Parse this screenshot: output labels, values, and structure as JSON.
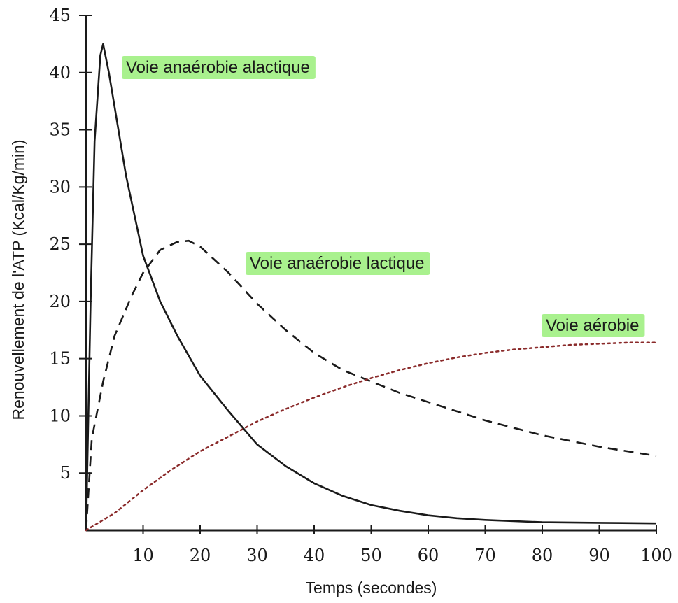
{
  "chart_data": {
    "type": "line",
    "xlabel": "Temps (secondes)",
    "ylabel": "Renouvellement de l'ATP (Kcal/Kg/min)",
    "xlim": [
      0,
      100
    ],
    "ylim": [
      0,
      45
    ],
    "xticks": [
      10,
      20,
      30,
      40,
      50,
      60,
      70,
      80,
      90,
      100
    ],
    "yticks": [
      5,
      10,
      15,
      20,
      25,
      30,
      35,
      40,
      45
    ],
    "grid": false,
    "highlight_color": "#9aef7a",
    "series": [
      {
        "name": "Voie anaérobie alactique",
        "style": "solid",
        "color": "#1a1a1a",
        "x": [
          0,
          0.8,
          1.5,
          2.5,
          3,
          4,
          5,
          7,
          10,
          13,
          16,
          20,
          25,
          30,
          35,
          40,
          45,
          50,
          55,
          60,
          65,
          70,
          80,
          90,
          100
        ],
        "y": [
          0,
          20,
          34,
          41.5,
          42.5,
          40,
          37,
          31,
          24,
          20,
          17,
          13.5,
          10.4,
          7.5,
          5.6,
          4.1,
          3,
          2.2,
          1.7,
          1.3,
          1.05,
          0.9,
          0.7,
          0.65,
          0.6
        ]
      },
      {
        "name": "Voie anaérobie lactique",
        "style": "dashed",
        "color": "#1a1a1a",
        "x": [
          0,
          1,
          3,
          5,
          8,
          10,
          13,
          16,
          18,
          20,
          25,
          30,
          35,
          40,
          45,
          50,
          55,
          60,
          70,
          80,
          90,
          100
        ],
        "y": [
          0,
          8,
          13,
          17,
          20.5,
          22.5,
          24.5,
          25.2,
          25.3,
          24.8,
          22.5,
          19.8,
          17.5,
          15.5,
          14,
          13,
          12,
          11.2,
          9.6,
          8.3,
          7.3,
          6.5
        ]
      },
      {
        "name": "Voie aérobie",
        "style": "dotted",
        "color": "#8a2a2a",
        "x": [
          0,
          5,
          10,
          15,
          20,
          25,
          30,
          35,
          40,
          45,
          50,
          55,
          60,
          65,
          70,
          75,
          80,
          85,
          90,
          95,
          100
        ],
        "y": [
          0,
          1.5,
          3.5,
          5.3,
          6.9,
          8.2,
          9.5,
          10.6,
          11.6,
          12.5,
          13.3,
          14,
          14.6,
          15.1,
          15.5,
          15.8,
          16,
          16.2,
          16.3,
          16.4,
          16.4
        ]
      }
    ]
  }
}
